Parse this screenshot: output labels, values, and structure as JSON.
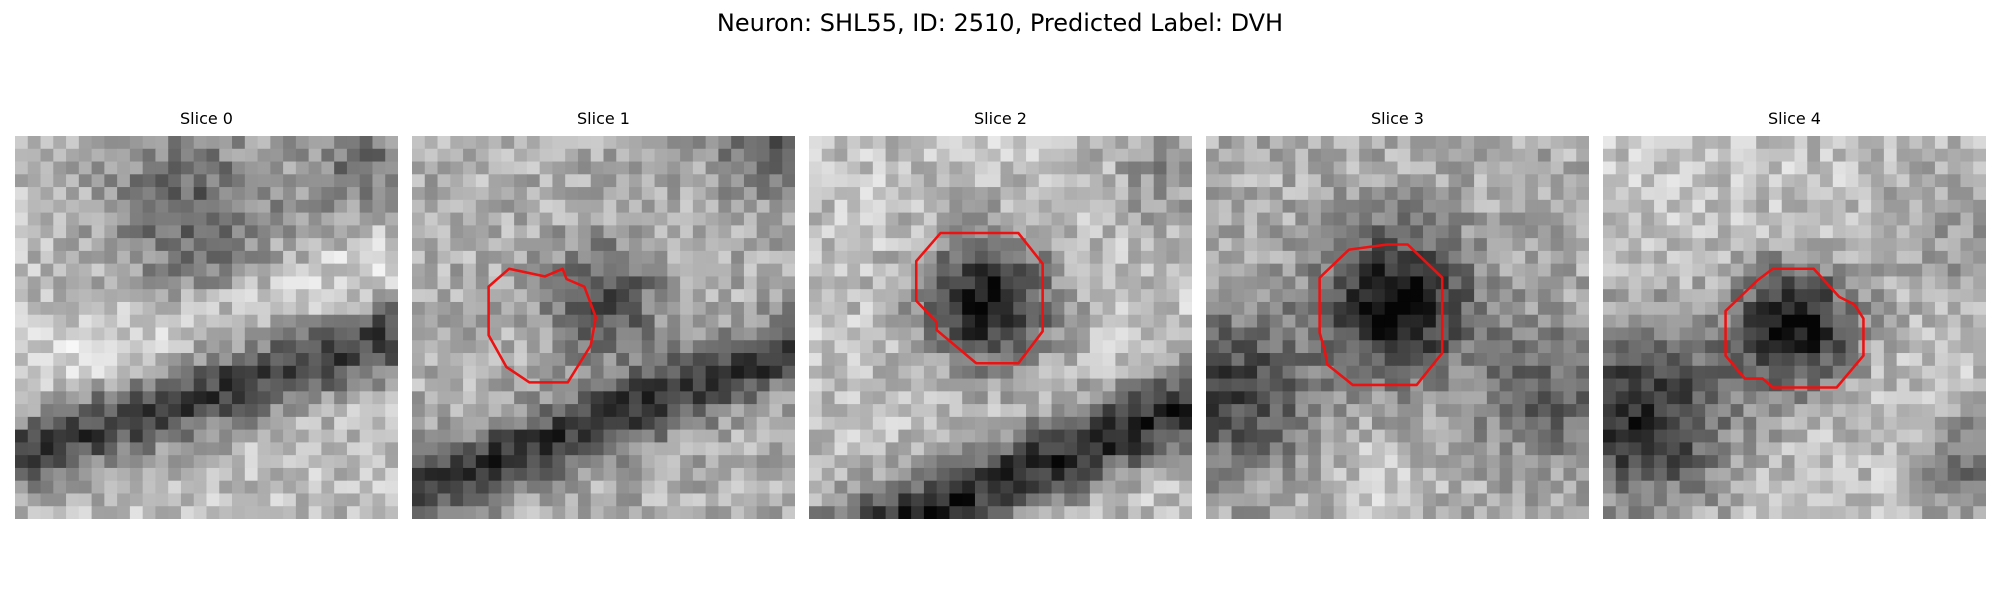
{
  "figure": {
    "title": "Neuron: SHL55, ID: 2510, Predicted Label: DVH"
  },
  "panels": [
    {
      "title": "Slice 0",
      "has_contour": false
    },
    {
      "title": "Slice 1",
      "has_contour": true
    },
    {
      "title": "Slice 2",
      "has_contour": true
    },
    {
      "title": "Slice 3",
      "has_contour": true
    },
    {
      "title": "Slice 4",
      "has_contour": true
    }
  ],
  "colors": {
    "contour": "#ee1111",
    "background": "#ffffff"
  },
  "image": {
    "colormap": "grayscale",
    "grid_size": 30
  }
}
